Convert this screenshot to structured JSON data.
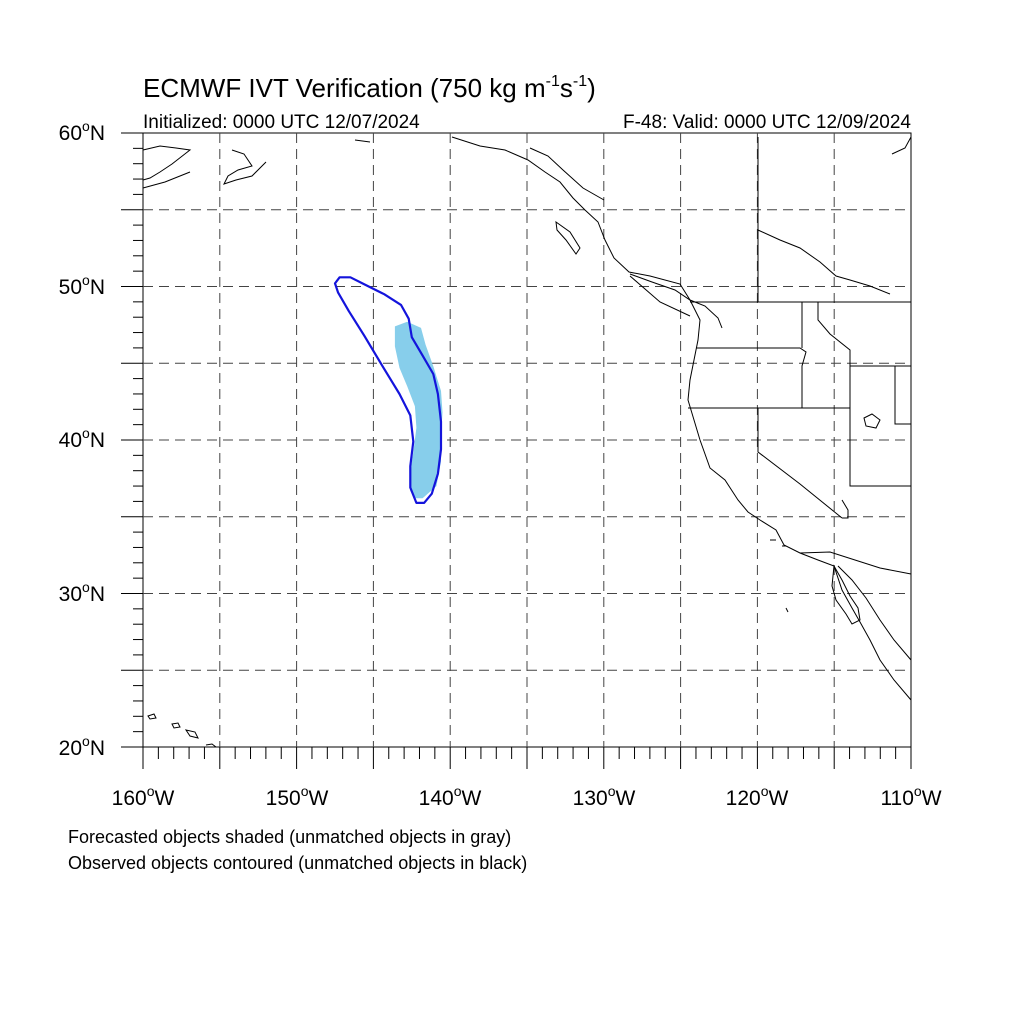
{
  "title": {
    "main": "ECMWF IVT Verification (750 kg m",
    "exp1": "-1",
    "mid": "s",
    "exp2": "-1",
    "close": ")"
  },
  "init_label": "Initialized: 0000 UTC 12/07/2024",
  "valid_label": "F-48: Valid: 0000 UTC 12/09/2024",
  "lat_labels": [
    "60",
    "50",
    "40",
    "30",
    "20"
  ],
  "lat_suffix": "N",
  "lon_labels": [
    "160",
    "150",
    "140",
    "130",
    "120",
    "110"
  ],
  "lon_suffix": "W",
  "degree_symbol": "o",
  "legend": {
    "line1": "Forecasted objects shaded (unmatched objects in gray)",
    "line2": "Observed objects contoured (unmatched objects in black)"
  },
  "map": {
    "lon_range": [
      -160,
      -110
    ],
    "lat_range": [
      20,
      60
    ],
    "projection": "cylindrical equidistant",
    "gridline_interval_deg": 5,
    "gridline_style": "dashed",
    "forecast_object": {
      "fill_color": "#87ceeb",
      "matched": true,
      "outline": [
        [
          -142.8,
          47.7
        ],
        [
          -141.9,
          47.3
        ],
        [
          -141.6,
          46.2
        ],
        [
          -141.1,
          44.8
        ],
        [
          -140.6,
          43.2
        ],
        [
          -140.5,
          41.8
        ],
        [
          -140.6,
          40.2
        ],
        [
          -140.6,
          38.6
        ],
        [
          -140.9,
          37.0
        ],
        [
          -141.8,
          36.2
        ],
        [
          -142.3,
          36.2
        ],
        [
          -142.6,
          36.7
        ],
        [
          -142.6,
          37.9
        ],
        [
          -142.4,
          39.2
        ],
        [
          -142.2,
          40.8
        ],
        [
          -142.3,
          42.2
        ],
        [
          -142.8,
          43.5
        ],
        [
          -143.3,
          44.7
        ],
        [
          -143.6,
          46.1
        ],
        [
          -143.6,
          47.4
        ]
      ]
    },
    "observed_object": {
      "line_color": "#1414dc",
      "matched": true,
      "outline": [
        [
          -147.2,
          50.6
        ],
        [
          -146.5,
          50.6
        ],
        [
          -145.5,
          50.1
        ],
        [
          -144.3,
          49.5
        ],
        [
          -143.2,
          48.8
        ],
        [
          -142.7,
          47.9
        ],
        [
          -142.5,
          46.7
        ],
        [
          -141.8,
          45.5
        ],
        [
          -141.1,
          44.3
        ],
        [
          -140.8,
          43.0
        ],
        [
          -140.6,
          41.2
        ],
        [
          -140.6,
          39.4
        ],
        [
          -140.8,
          37.8
        ],
        [
          -141.2,
          36.5
        ],
        [
          -141.7,
          35.9
        ],
        [
          -142.2,
          35.9
        ],
        [
          -142.6,
          36.9
        ],
        [
          -142.6,
          38.3
        ],
        [
          -142.4,
          39.9
        ],
        [
          -142.6,
          41.6
        ],
        [
          -143.3,
          43.0
        ],
        [
          -144.4,
          44.8
        ],
        [
          -145.6,
          46.8
        ],
        [
          -146.6,
          48.4
        ],
        [
          -147.3,
          49.6
        ],
        [
          -147.5,
          50.2
        ]
      ]
    }
  }
}
